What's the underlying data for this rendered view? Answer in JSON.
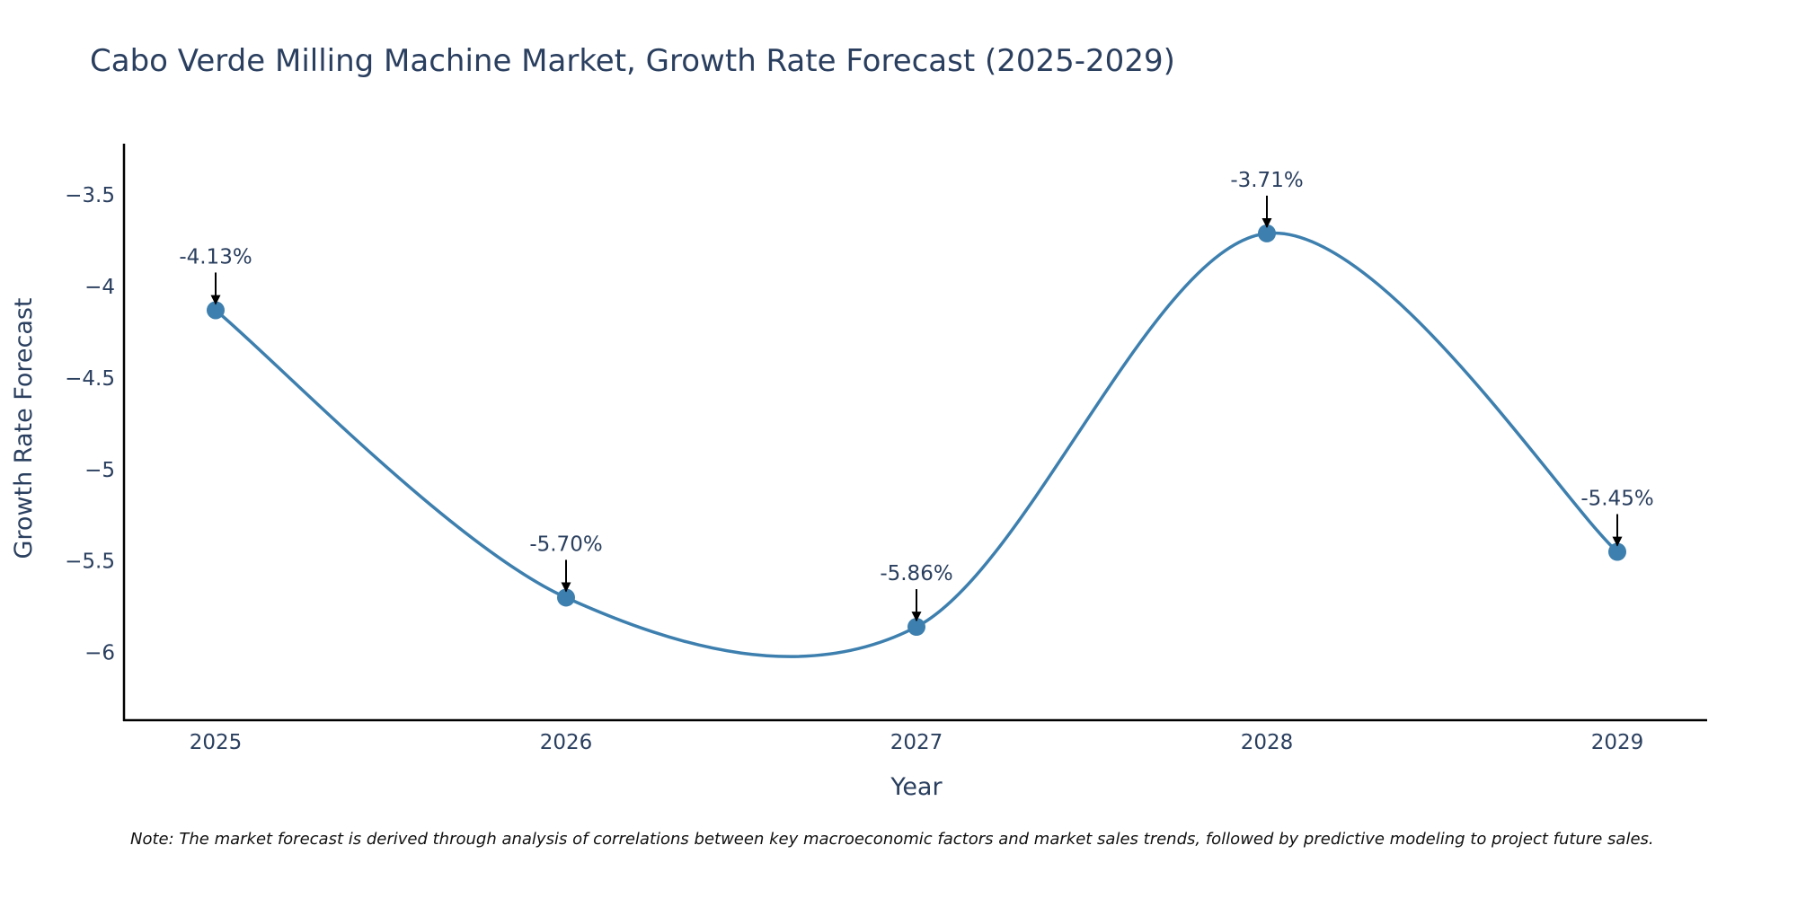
{
  "chart_data": {
    "type": "line",
    "title": "Cabo Verde Milling Machine Market, Growth Rate Forecast (2025-2029)",
    "xlabel": "Year",
    "ylabel": "Growth Rate Forecast",
    "categories": [
      "2025",
      "2026",
      "2027",
      "2028",
      "2029"
    ],
    "series": [
      {
        "name": "Growth Rate Forecast",
        "values": [
          -4.13,
          -5.7,
          -5.86,
          -3.71,
          -5.45
        ],
        "labels": [
          "-4.13%",
          "-5.70%",
          "-5.86%",
          "-3.71%",
          "-5.45%"
        ],
        "color": "#3d7fae"
      }
    ],
    "ylim": [
      -6.37,
      -3.22
    ],
    "yticks": [
      -3.5,
      -4,
      -4.5,
      -5,
      -5.5,
      -6
    ],
    "ytick_labels": [
      "−3.5",
      "−4",
      "−4.5",
      "−5",
      "−5.5",
      "−6"
    ],
    "grid": false,
    "note": "Note: The market forecast is derived through analysis of correlations between key macroeconomic factors and market sales trends, followed by predictive modeling to project future sales."
  },
  "colors": {
    "line": "#3d7fae",
    "marker": "#3d7fae",
    "text": "#2a3f5f",
    "axis": "#000000"
  }
}
